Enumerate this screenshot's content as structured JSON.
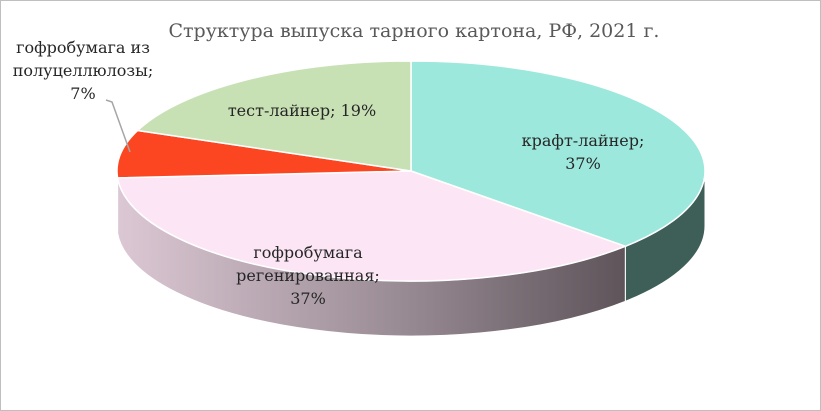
{
  "chart_data": {
    "type": "pie",
    "title": "Структура выпуска тарного картона, РФ, 2021 г.",
    "slices": [
      {
        "category": "крафт-лайнер",
        "value": 37,
        "label_lines": [
          "крафт-лайнер;",
          "37%"
        ],
        "color": "#9de8dc",
        "side_color": "#3e5e58"
      },
      {
        "category": "гофробумага регенированная",
        "value": 37,
        "label_lines": [
          "гофробумага",
          "регенированная;",
          "37%"
        ],
        "color": "#fce6f6",
        "side_color": "#8e8088"
      },
      {
        "category": "гофробумага из полуцеллюлозы",
        "value": 7,
        "label_lines": [
          "гофробумага из",
          "полуцеллюлозы;",
          "7%"
        ],
        "color": "#fc4521",
        "side_color": "#a0301a"
      },
      {
        "category": "тест-лайнер",
        "value": 19,
        "label_lines": [
          "тест-лайнер; 19%"
        ],
        "color": "#c7e0b4",
        "side_color": "#7e9170"
      }
    ]
  }
}
